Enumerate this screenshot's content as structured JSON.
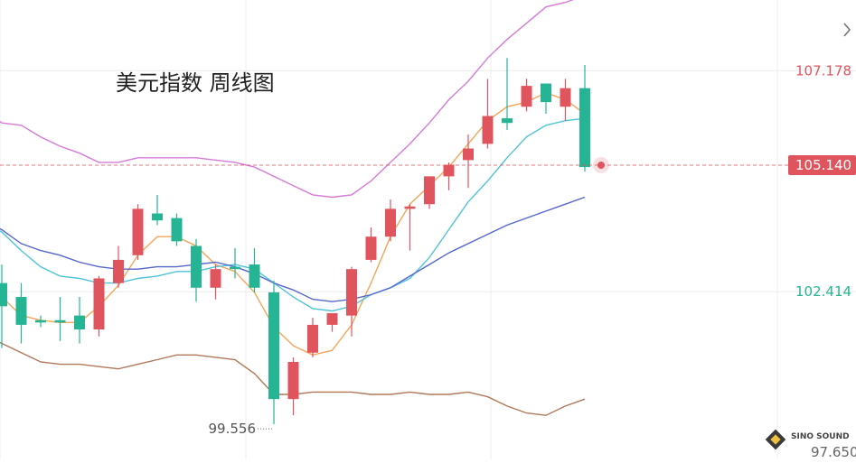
{
  "chart_data": {
    "type": "candlestick",
    "title": "美元指数  周线图",
    "price_labels": {
      "upper": "107.178",
      "current": "105.140",
      "lower": "102.414",
      "bottom": "97.650"
    },
    "current_price": 105.14,
    "low_marker": {
      "label": "99.556",
      "value": 99.556
    },
    "y_range": [
      98.8,
      108.7
    ],
    "colors": {
      "up": "#e0545e",
      "down": "#26b594",
      "upper_band": "#d67ad8",
      "ma_fast": "#f5a55a",
      "ma_mid": "#4fc4d8",
      "ma_slow": "#5566cc",
      "lower_band": "#b0785a",
      "current_line": "#e0545e",
      "upper_label": "#e0545e",
      "lower_label": "#26b594",
      "current_box": "#e0545e"
    },
    "candles": [
      {
        "o": 102.6,
        "c": 102.1,
        "h": 103.0,
        "l": 101.2
      },
      {
        "o": 102.3,
        "c": 101.7,
        "h": 102.6,
        "l": 101.3
      },
      {
        "o": 101.8,
        "c": 101.75,
        "h": 101.9,
        "l": 101.65
      },
      {
        "o": 101.8,
        "c": 101.75,
        "h": 102.3,
        "l": 101.35
      },
      {
        "o": 101.9,
        "c": 101.6,
        "h": 102.3,
        "l": 101.3
      },
      {
        "o": 101.6,
        "c": 102.7,
        "h": 102.75,
        "l": 101.45
      },
      {
        "o": 102.6,
        "c": 103.1,
        "h": 103.4,
        "l": 102.5
      },
      {
        "o": 103.2,
        "c": 104.2,
        "h": 104.3,
        "l": 103.1
      },
      {
        "o": 104.1,
        "c": 103.95,
        "h": 104.5,
        "l": 103.85
      },
      {
        "o": 104.0,
        "c": 103.5,
        "h": 104.1,
        "l": 103.4
      },
      {
        "o": 103.4,
        "c": 102.5,
        "h": 103.55,
        "l": 102.2
      },
      {
        "o": 102.5,
        "c": 102.9,
        "h": 103.0,
        "l": 102.25
      },
      {
        "o": 102.95,
        "c": 102.9,
        "h": 103.35,
        "l": 102.7
      },
      {
        "o": 103.0,
        "c": 102.5,
        "h": 103.35,
        "l": 102.4
      },
      {
        "o": 102.4,
        "c": 100.1,
        "h": 102.65,
        "l": 99.556
      },
      {
        "o": 100.1,
        "c": 100.9,
        "h": 101.0,
        "l": 99.75
      },
      {
        "o": 101.1,
        "c": 101.7,
        "h": 101.85,
        "l": 101.0
      },
      {
        "o": 101.7,
        "c": 101.95,
        "h": 101.95,
        "l": 101.55
      },
      {
        "o": 101.9,
        "c": 102.9,
        "h": 102.95,
        "l": 101.45
      },
      {
        "o": 103.1,
        "c": 103.6,
        "h": 103.8,
        "l": 103.05
      },
      {
        "o": 103.6,
        "c": 104.2,
        "h": 104.4,
        "l": 103.5
      },
      {
        "o": 104.2,
        "c": 104.25,
        "h": 104.3,
        "l": 103.3
      },
      {
        "o": 104.3,
        "c": 104.9,
        "h": 104.9,
        "l": 104.2
      },
      {
        "o": 104.9,
        "c": 105.15,
        "h": 105.2,
        "l": 104.6
      },
      {
        "o": 105.25,
        "c": 105.5,
        "h": 105.8,
        "l": 104.65
      },
      {
        "o": 105.6,
        "c": 106.2,
        "h": 107.0,
        "l": 105.5
      },
      {
        "o": 106.15,
        "c": 106.05,
        "h": 107.45,
        "l": 105.9
      },
      {
        "o": 106.4,
        "c": 106.85,
        "h": 107.0,
        "l": 106.3
      },
      {
        "o": 106.9,
        "c": 106.5,
        "h": 106.9,
        "l": 106.25
      },
      {
        "o": 106.4,
        "c": 106.8,
        "h": 107.0,
        "l": 106.1
      },
      {
        "o": 106.8,
        "c": 105.1,
        "h": 107.3,
        "l": 105.0
      }
    ],
    "series": [
      {
        "key": "upper_band",
        "start_index": -1,
        "values": [
          106.35,
          106.05,
          106.0,
          105.75,
          105.55,
          105.4,
          105.2,
          105.2,
          105.3,
          105.3,
          105.3,
          105.3,
          105.25,
          105.2,
          105.1,
          104.9,
          104.7,
          104.5,
          104.45,
          104.5,
          104.8,
          105.2,
          105.6,
          106.05,
          106.55,
          106.95,
          107.45,
          107.85,
          108.2,
          108.55,
          108.65,
          108.8
        ]
      },
      {
        "key": "ma_fast",
        "start_index": -1,
        "values": [
          102.8,
          102.3,
          101.9,
          101.8,
          101.75,
          101.75,
          102.1,
          102.55,
          103.2,
          103.6,
          103.6,
          103.4,
          103.0,
          102.85,
          102.4,
          101.65,
          101.25,
          101.05,
          101.15,
          101.7,
          102.6,
          103.6,
          104.3,
          104.7,
          105.1,
          105.6,
          106.1,
          106.4,
          106.5,
          106.7,
          106.55,
          106.25
        ]
      },
      {
        "key": "ma_mid",
        "start_index": -1,
        "values": [
          103.95,
          103.7,
          103.3,
          102.95,
          102.75,
          102.7,
          102.6,
          102.6,
          102.7,
          102.75,
          102.85,
          102.85,
          102.95,
          103.0,
          102.9,
          102.6,
          102.3,
          102.05,
          102.0,
          102.1,
          102.35,
          102.5,
          102.7,
          103.15,
          103.75,
          104.35,
          104.8,
          105.3,
          105.75,
          106.0,
          106.1,
          106.15
        ]
      },
      {
        "key": "ma_slow",
        "start_index": -1,
        "values": [
          103.95,
          103.75,
          103.45,
          103.3,
          103.2,
          103.05,
          102.95,
          102.9,
          102.9,
          102.95,
          102.95,
          103.0,
          103.05,
          102.95,
          102.8,
          102.6,
          102.45,
          102.25,
          102.2,
          102.25,
          102.35,
          102.5,
          102.75,
          103.0,
          103.25,
          103.45,
          103.65,
          103.85,
          104.0,
          104.15,
          104.3,
          104.45
        ]
      },
      {
        "key": "lower_band",
        "start_index": -1,
        "values": [
          101.5,
          101.3,
          101.1,
          100.9,
          100.85,
          100.85,
          100.8,
          100.75,
          100.85,
          100.95,
          101.05,
          101.05,
          101.0,
          100.95,
          100.65,
          100.2,
          100.2,
          100.25,
          100.25,
          100.25,
          100.2,
          100.2,
          100.25,
          100.2,
          100.2,
          100.25,
          100.15,
          99.95,
          99.8,
          99.75,
          99.95,
          100.1
        ]
      }
    ]
  },
  "ui": {
    "collapse_icon": "chevron-right-icon",
    "logo": {
      "icon": "diamond-logo-icon",
      "text": "SINO SOUND"
    }
  }
}
